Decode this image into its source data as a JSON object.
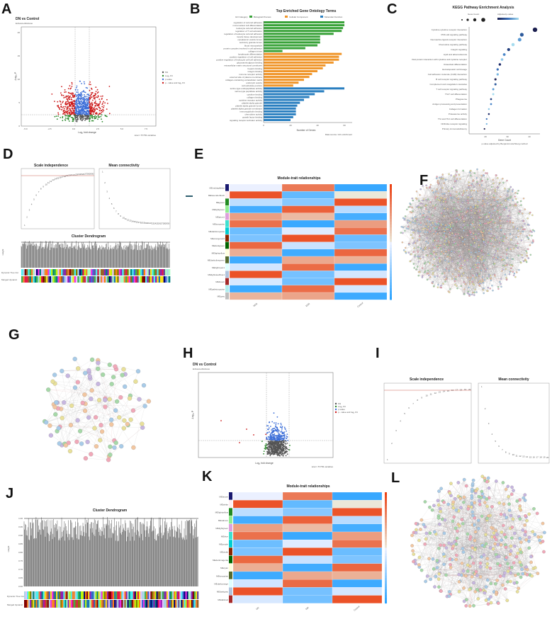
{
  "figure": {
    "panels": {
      "A": {
        "letter": "A",
        "title": "DN vs Control",
        "subtitle": "EnhancedVolcano",
        "xlabel": "Log₂ fold change",
        "ylabel": "-Log₁₀ P",
        "legend": [
          "NS",
          "Log₂ FC",
          "p-value",
          "p - value and log₂ FC"
        ],
        "caption": "total = 57783 variables",
        "xticks": [
          "-5.0",
          "-2.5",
          "0.0",
          "2.5",
          "5.0",
          "7.5"
        ],
        "yticks": [
          "0",
          "5",
          "10",
          "15",
          "20"
        ]
      },
      "B": {
        "letter": "B",
        "title": "Top Enriched Gene Ontology Terms",
        "legend_title": "GO Category",
        "legend": [
          "Biological Process",
          "Cellular Component",
          "Molecular Function"
        ],
        "xlabel": "Number of Genes",
        "xticks": [
          "0",
          "20",
          "40",
          "60"
        ],
        "caption": "Data source: GO enrichment"
      },
      "C": {
        "letter": "C",
        "title": "KEGG Pathway Enrichment Analysis",
        "legend_size": "Gene Count",
        "legend_color": "Adjusted p-value",
        "xlabel": "Gene Count",
        "xticks": [
          "20",
          "30",
          "40"
        ],
        "caption": "p-value adjusted by Benjamini-Hochberg method",
        "terms": [
          "Cytokine-cytokine receptor interaction",
          "PI3K-Akt signaling pathway",
          "Neuroactive ligand-receptor interaction",
          "Chemokine signaling pathway",
          "Integrin signaling",
          "Lipid and atherosclerosis",
          "Viral protein interaction with cytokine and cytokine receptor",
          "Osteoclast differentiation",
          "Hematopoietic cell lineage",
          "Cell adhesion molecule (CAM) interaction",
          "B cell receptor signaling pathway",
          "Complement and coagulation cascades",
          "T cell receptor signaling pathway",
          "Th17 cell differentiation",
          "Phagosome",
          "Antigen processing and presentation",
          "Collagen formation",
          "Proteasome activity",
          "Th1 and Th2 cell differentiation",
          "NOD-like receptor signaling",
          "Primary immunodeficiency"
        ],
        "gene_count": [
          44,
          38,
          37,
          34,
          32,
          30,
          29,
          28,
          27,
          27,
          26,
          26,
          25,
          25,
          24,
          24,
          23,
          23,
          22,
          22,
          21
        ]
      },
      "D": {
        "letter": "D",
        "title1": "Scale independence",
        "title2": "Mean connectivity",
        "title3": "Cluster Dendrogram",
        "ylabel3": "Height",
        "row1": "Dynamic Tree Cut",
        "row2": "Merged dynamic"
      },
      "E": {
        "letter": "E",
        "title": "Module-trait relationships",
        "cols": [
          "NDN",
          "EDN",
          "Control"
        ],
        "rows": [
          "MEmidnightblue",
          "MElavenderblush",
          "MEgreen",
          "MElightgreen",
          "MEplum1",
          "MEturquoise",
          "MEdarkturquoise",
          "MEorangered4",
          "MEdarkgreen",
          "MElightyellow",
          "MEdarkolivegreen",
          "MElightcyan1",
          "MElightsteelblue1",
          "MEbrown",
          "MEpaleturquoise",
          "MEgrey"
        ]
      },
      "F": {
        "letter": "F"
      },
      "G": {
        "letter": "G"
      },
      "H": {
        "letter": "H",
        "title": "DN vs Control",
        "subtitle": "EnhancedVolcano",
        "xlabel": "Log₂ fold change",
        "ylabel": "-Log₁₀ P",
        "legend": [
          "NS",
          "Log₂ FC",
          "p-value",
          "p - value and log₂ FC"
        ],
        "caption": "total = 57783 variables"
      },
      "I": {
        "letter": "I",
        "title1": "Scale independence",
        "title2": "Mean connectivity"
      },
      "J": {
        "letter": "J",
        "title": "Cluster Dendrogram",
        "ylabel": "Height",
        "yticks": [
          "0.60",
          "0.65",
          "0.70",
          "0.75",
          "0.80",
          "0.85",
          "0.90",
          "0.95",
          "1.00"
        ],
        "row1": "Dynamic Tree Cut",
        "row2": "Merged dynamic"
      },
      "K": {
        "letter": "K",
        "title": "Module-trait relationships",
        "cols": [
          "DN",
          "DM",
          "Control"
        ],
        "rows": [
          "MEbrown",
          "MEwhite",
          "MElightyellow",
          "MEsalmon",
          "MElightgreen",
          "MEblue",
          "MEpurple",
          "MEviolet",
          "MEdarkmagenta",
          "MEcyan",
          "MEturquoise",
          "MEdarkorange",
          "MEdarkgrey",
          "MEdarkred"
        ]
      },
      "L": {
        "letter": "L"
      }
    },
    "colors": {
      "ns": "#555555",
      "fc": "#2e8b2e",
      "pv": "#3d6fd8",
      "both": "#cc1a1a",
      "bp": "#3aa33a",
      "cc": "#f0962a",
      "mf": "#2a7fc0",
      "accent": "#c0392b"
    }
  }
}
